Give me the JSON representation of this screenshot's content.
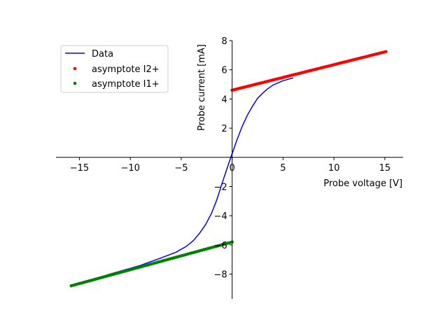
{
  "chart_data": {
    "type": "line",
    "title": "",
    "xlabel": "Probe voltage [V]",
    "ylabel": "Probe current [mA]",
    "xlim": [
      -17.3,
      16.8
    ],
    "ylim": [
      -9.7,
      8.0
    ],
    "xticks": [
      -15,
      -10,
      -5,
      0,
      5,
      10,
      15
    ],
    "yticks": [
      -8,
      -6,
      -4,
      -2,
      0,
      2,
      4,
      6,
      8
    ],
    "xtick_labels": [
      "−15",
      "−10",
      "−5",
      "0",
      "5",
      "10",
      "15"
    ],
    "ytick_labels": [
      "−8",
      "−6",
      "−4",
      "−2",
      "0",
      "2",
      "4",
      "6",
      "8"
    ],
    "spines": "centered at origin",
    "grid": false,
    "legend_position": "upper-left",
    "series": [
      {
        "name": "Data",
        "style": "line",
        "color": "#0000ff",
        "x": [
          -15.8,
          -12,
          -9,
          -7,
          -5.5,
          -4.5,
          -3.8,
          -3.2,
          -2.6,
          -2.0,
          -1.5,
          -1.0,
          -0.5,
          0.0,
          0.5,
          1.0,
          1.5,
          2.0,
          2.5,
          3.0,
          3.5,
          4.0,
          5.0,
          6.0
        ],
        "y": [
          -8.8,
          -8.0,
          -7.4,
          -6.9,
          -6.5,
          -6.1,
          -5.7,
          -5.2,
          -4.6,
          -3.8,
          -2.9,
          -1.8,
          -0.75,
          0.25,
          1.25,
          2.15,
          2.9,
          3.5,
          4.05,
          4.4,
          4.7,
          4.95,
          5.25,
          5.45
        ]
      },
      {
        "name": "asymptote I2+",
        "style": "points",
        "color": "#ff0000",
        "x_range": [
          0.0,
          15.1
        ],
        "line": {
          "intercept": 4.6,
          "slope": 0.175
        }
      },
      {
        "name": "asymptote I1+",
        "style": "points",
        "color": "#008000",
        "x_range": [
          -15.8,
          0.0
        ],
        "line": {
          "intercept": -5.8,
          "slope": 0.19
        }
      }
    ]
  }
}
